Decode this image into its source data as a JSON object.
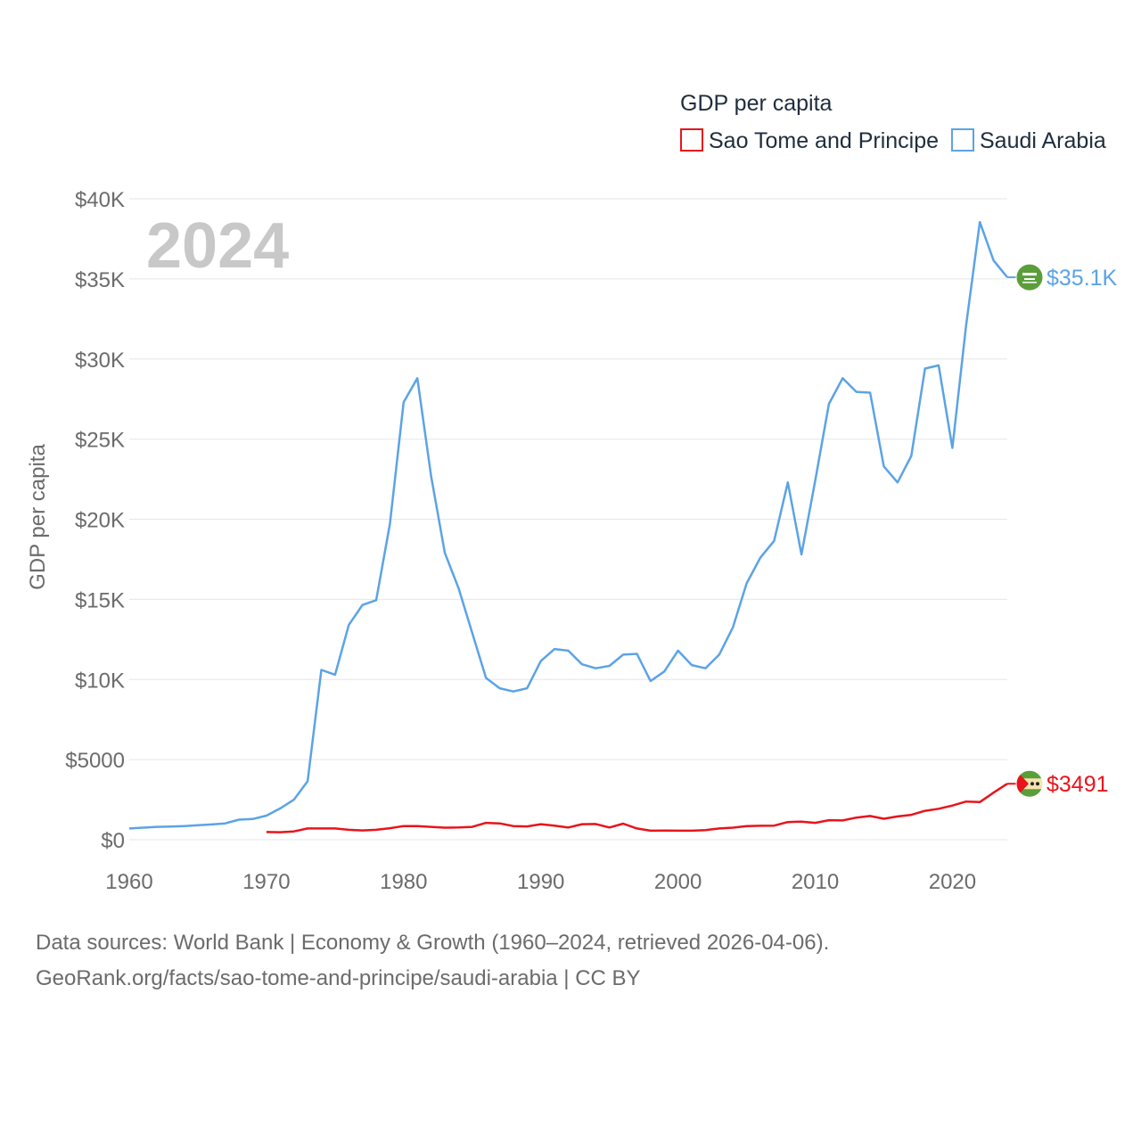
{
  "chart_data": {
    "type": "line",
    "ylabel": "GDP per capita",
    "year_label": "2024",
    "legend": {
      "title": "GDP per capita",
      "position": "top-right"
    },
    "xlim": [
      1960,
      2024
    ],
    "ylim": [
      0,
      40000
    ],
    "x_ticks": [
      1960,
      1970,
      1980,
      1990,
      2000,
      2010,
      2020
    ],
    "y_ticks": [
      0,
      5000,
      10000,
      15000,
      20000,
      25000,
      30000,
      35000,
      40000
    ],
    "y_tick_labels": [
      "$0",
      "$5000",
      "$10K",
      "$15K",
      "$20K",
      "$25K",
      "$30K",
      "$35K",
      "$40K"
    ],
    "series": [
      {
        "name": "Sao Tome and Principe",
        "color": "#e8141b",
        "end_label": "$3491",
        "flag_icon": "sao-tome-flag-icon",
        "x": [
          1970,
          1971,
          1972,
          1973,
          1974,
          1975,
          1976,
          1977,
          1978,
          1979,
          1980,
          1981,
          1982,
          1983,
          1984,
          1985,
          1986,
          1987,
          1988,
          1989,
          1990,
          1991,
          1992,
          1993,
          1994,
          1995,
          1996,
          1997,
          1998,
          1999,
          2000,
          2001,
          2002,
          2003,
          2004,
          2005,
          2006,
          2007,
          2008,
          2009,
          2010,
          2011,
          2012,
          2013,
          2014,
          2015,
          2016,
          2017,
          2018,
          2019,
          2020,
          2021,
          2022,
          2023,
          2024
        ],
        "values": [
          480,
          470,
          520,
          700,
          700,
          700,
          620,
          580,
          620,
          720,
          850,
          850,
          800,
          750,
          760,
          800,
          1050,
          1020,
          850,
          830,
          970,
          880,
          760,
          970,
          980,
          760,
          1000,
          700,
          560,
          570,
          560,
          560,
          600,
          700,
          750,
          850,
          870,
          880,
          1100,
          1130,
          1050,
          1220,
          1200,
          1380,
          1480,
          1310,
          1450,
          1550,
          1800,
          1930,
          2130,
          2380,
          2350,
          2940,
          3491
        ]
      },
      {
        "name": "Saudi Arabia",
        "color": "#5ba3e6",
        "end_label": "$35.1K",
        "flag_icon": "saudi-arabia-flag-icon",
        "x": [
          1960,
          1961,
          1962,
          1963,
          1964,
          1965,
          1966,
          1967,
          1968,
          1969,
          1970,
          1971,
          1972,
          1973,
          1974,
          1975,
          1976,
          1977,
          1978,
          1979,
          1980,
          1981,
          1982,
          1983,
          1984,
          1985,
          1986,
          1987,
          1988,
          1989,
          1990,
          1991,
          1992,
          1993,
          1994,
          1995,
          1996,
          1997,
          1998,
          1999,
          2000,
          2001,
          2002,
          2003,
          2004,
          2005,
          2006,
          2007,
          2008,
          2009,
          2010,
          2011,
          2012,
          2013,
          2014,
          2015,
          2016,
          2017,
          2018,
          2019,
          2020,
          2021,
          2022,
          2023,
          2024
        ],
        "values": [
          700,
          750,
          800,
          820,
          850,
          900,
          950,
          1020,
          1250,
          1290,
          1500,
          1950,
          2500,
          3650,
          10600,
          10300,
          13400,
          14650,
          14950,
          19700,
          27300,
          28800,
          22700,
          17900,
          15700,
          12900,
          10100,
          9450,
          9250,
          9450,
          11150,
          11900,
          11800,
          10950,
          10700,
          10850,
          11550,
          11600,
          9900,
          10500,
          11800,
          10900,
          10700,
          11550,
          13250,
          16000,
          17600,
          18650,
          22300,
          17800,
          22400,
          27200,
          28800,
          27950,
          27900,
          23300,
          22300,
          23950,
          29400,
          29600,
          24450,
          32100,
          38550,
          36150,
          35100
        ]
      }
    ]
  },
  "footer": {
    "line1": "Data sources: World Bank | Economy & Growth (1960–2024, retrieved 2026-04-06).",
    "line2": "GeoRank.org/facts/sao-tome-and-principe/saudi-arabia | CC BY"
  }
}
